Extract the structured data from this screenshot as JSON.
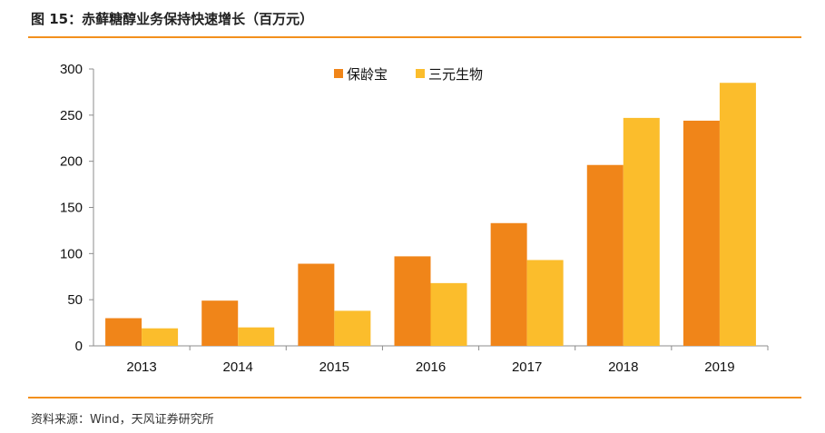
{
  "figure": {
    "title": "图 15：赤藓糖醇业务保持快速增长（百万元）",
    "source": "资料来源：Wind，天风证券研究所"
  },
  "colors": {
    "rule": "#f3901d",
    "axis": "#8c8c8c"
  },
  "chart_data": {
    "type": "bar",
    "title": "",
    "xlabel": "",
    "ylabel": "",
    "categories": [
      "2013",
      "2014",
      "2015",
      "2016",
      "2017",
      "2018",
      "2019"
    ],
    "series": [
      {
        "name": "保龄宝",
        "color": "#f08519",
        "values": [
          30,
          49,
          89,
          97,
          133,
          196,
          244
        ]
      },
      {
        "name": "三元生物",
        "color": "#fbbd2c",
        "values": [
          19,
          20,
          38,
          68,
          93,
          247,
          285
        ]
      }
    ],
    "ylim": [
      0,
      300
    ],
    "yticks": [
      0,
      50,
      100,
      150,
      200,
      250,
      300
    ],
    "grid": false,
    "legend_position": "top"
  }
}
